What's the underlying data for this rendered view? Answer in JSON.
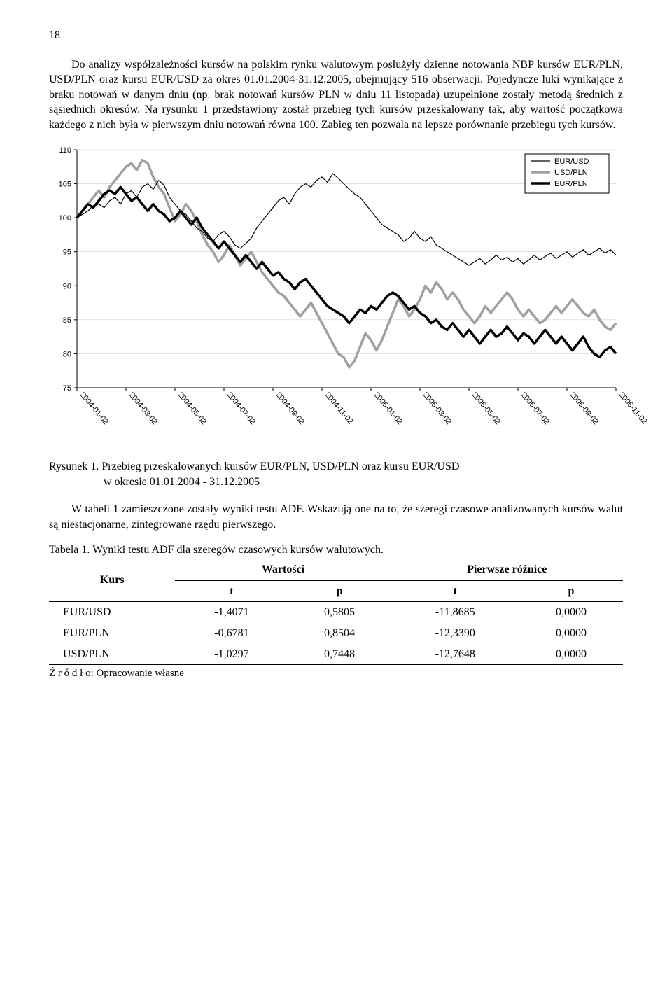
{
  "page_number": "18",
  "para1": "Do analizy współzależności kursów na polskim rynku walutowym posłużyły dzienne notowania NBP kursów EUR/PLN, USD/PLN oraz kursu EUR/USD za okres 01.01.2004-31.12.2005, obejmujący 516 obserwacji. Pojedyncze luki wynikające z braku notowań w danym dniu (np. brak notowań kursów PLN w dniu 11 listopada) uzupełnione zostały metodą średnich z sąsiednich okresów. Na rysunku 1 przedstawiony został przebieg tych kursów przeskalowany tak, aby wartość początkowa każdego z nich była w pierwszym dniu notowań równa 100. Zabieg ten pozwala na lepsze porównanie przebiegu tych kursów.",
  "chart": {
    "type": "line",
    "background_color": "#ffffff",
    "grid_color": "#d0d0d0",
    "tick_fontsize": 11,
    "ylim": [
      75,
      110
    ],
    "ytick_step": 5,
    "x_labels": [
      "2004-01-02",
      "2004-03-02",
      "2004-05-02",
      "2004-07-02",
      "2004-09-02",
      "2004-11-02",
      "2005-01-02",
      "2005-03-02",
      "2005-05-02",
      "2005-07-02",
      "2005-09-02",
      "2005-11-02"
    ],
    "legend": {
      "items": [
        {
          "label": "EUR/USD",
          "color": "#000000",
          "width": 1.2
        },
        {
          "label": "USD/PLN",
          "color": "#a0a0a0",
          "width": 3.5
        },
        {
          "label": "EUR/PLN",
          "color": "#000000",
          "width": 3.5
        }
      ],
      "border_color": "#000000",
      "position": "top-right"
    },
    "series": {
      "eur_usd": {
        "color": "#000000",
        "width": 1.2,
        "values": [
          100,
          100.5,
          101,
          101.8,
          102,
          101.5,
          102.5,
          103,
          102,
          103.5,
          104,
          103,
          104.5,
          105,
          104.2,
          105.5,
          104.8,
          103,
          102,
          101,
          100.5,
          99.5,
          98.5,
          98,
          97,
          96.5,
          97.5,
          98,
          97.2,
          96,
          95.5,
          96.2,
          97,
          98.5,
          99.5,
          100.5,
          101.5,
          102.5,
          103,
          102,
          103.5,
          104.5,
          105,
          104.5,
          105.5,
          106,
          105.2,
          106.5,
          105.8,
          105,
          104.2,
          103.5,
          103,
          102,
          101,
          100,
          99,
          98.5,
          98,
          97.5,
          96.5,
          97,
          98,
          97,
          96.5,
          97.2,
          96,
          95.5,
          95,
          94.5,
          94,
          93.5,
          93,
          93.5,
          94,
          93.2,
          93.8,
          94.5,
          93.8,
          94.2,
          93.5,
          94,
          93.2,
          93.8,
          94.5,
          93.8,
          94.3,
          94.8,
          94,
          94.5,
          95,
          94.2,
          94.8,
          95.3,
          94.5,
          95,
          95.5,
          94.8,
          95.3,
          94.5
        ]
      },
      "usd_pln": {
        "color": "#a0a0a0",
        "width": 3.5,
        "values": [
          100,
          101,
          102,
          103,
          104,
          103,
          104.5,
          105.5,
          106.5,
          107.5,
          108,
          107,
          108.5,
          108,
          106,
          104.5,
          103.5,
          101.5,
          99.5,
          100.5,
          102,
          101,
          99.5,
          97.5,
          96,
          95,
          93.5,
          94.5,
          96,
          94.5,
          93,
          94,
          95,
          93.5,
          92,
          91,
          90,
          89,
          88.5,
          87.5,
          86.5,
          85.5,
          86.5,
          87.5,
          86,
          84.5,
          83,
          81.5,
          80,
          79.5,
          78,
          79,
          81,
          83,
          82,
          80.5,
          82,
          84,
          86,
          88,
          87,
          85.5,
          86.5,
          88,
          90,
          89,
          90.5,
          89.5,
          88,
          89,
          88,
          86.5,
          85.5,
          84.5,
          85.5,
          87,
          86,
          87,
          88,
          89,
          88,
          86.5,
          85.5,
          86.5,
          85.5,
          84.5,
          85,
          86,
          87,
          86,
          87,
          88,
          87,
          86,
          85.5,
          86.5,
          85,
          84,
          83.5,
          84.5
        ]
      },
      "eur_pln": {
        "color": "#000000",
        "width": 3.5,
        "values": [
          100,
          101,
          102,
          101.5,
          102.5,
          103.5,
          104,
          103.5,
          104.5,
          103.5,
          102.5,
          103,
          102,
          101,
          102,
          101,
          100.5,
          99.5,
          100,
          101,
          100,
          99,
          100,
          98.5,
          97.5,
          96.5,
          95.5,
          96.5,
          95.5,
          94.5,
          93.5,
          94.5,
          93.5,
          92.5,
          93.5,
          92.5,
          91.5,
          92,
          91,
          90.5,
          89.5,
          90.5,
          91,
          90,
          89,
          88,
          87,
          86.5,
          86,
          85.5,
          84.5,
          85.5,
          86.5,
          86,
          87,
          86.5,
          87.5,
          88.5,
          89,
          88.5,
          87.5,
          86.5,
          87,
          86,
          85.5,
          84.5,
          85,
          84,
          83.5,
          84.5,
          83.5,
          82.5,
          83.5,
          82.5,
          81.5,
          82.5,
          83.5,
          82.5,
          83,
          84,
          83,
          82,
          83,
          82.5,
          81.5,
          82.5,
          83.5,
          82.5,
          81.5,
          82.5,
          81.5,
          80.5,
          81.5,
          82.5,
          81,
          80,
          79.5,
          80.5,
          81,
          80
        ]
      }
    }
  },
  "caption1_a": "Rysunek 1. Przebieg przeskalowanych kursów EUR/PLN, USD/PLN oraz kursu EUR/USD",
  "caption1_b": "w okresie 01.01.2004 - 31.12.2005",
  "para2": "W tabeli 1 zamieszczone zostały wyniki testu ADF. Wskazują one na to, że szeregi czasowe analizowanych kursów walut są niestacjonarne, zintegrowane rzędu pierwszego.",
  "table_title": "Tabela 1. Wyniki testu ADF dla szeregów czasowych kursów walutowych.",
  "table": {
    "head_kurs": "Kurs",
    "head_wart": "Wartości",
    "head_roz": "Pierwsze różnice",
    "sub_t": "t",
    "sub_p": "p",
    "rows": [
      {
        "name": "EUR/USD",
        "t1": "-1,4071",
        "p1": "0,5805",
        "t2": "-11,8685",
        "p2": "0,0000"
      },
      {
        "name": "EUR/PLN",
        "t1": "-0,6781",
        "p1": "0,8504",
        "t2": "-12,3390",
        "p2": "0,0000"
      },
      {
        "name": "USD/PLN",
        "t1": "-1,0297",
        "p1": "0,7448",
        "t2": "-12,7648",
        "p2": "0,0000"
      }
    ]
  },
  "source": "Ź r ó d ł o:  Opracowanie własne"
}
